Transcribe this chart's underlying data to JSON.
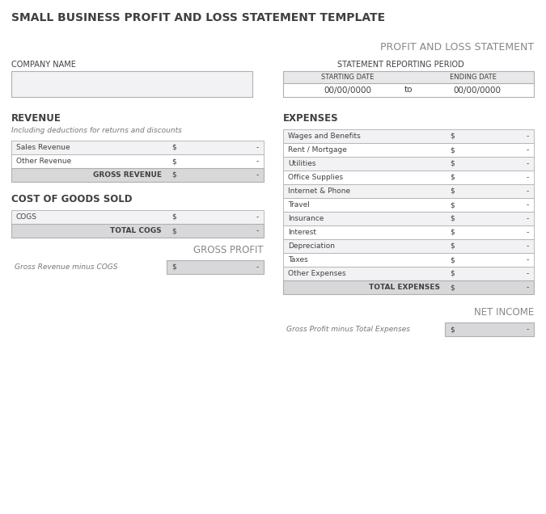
{
  "title": "SMALL BUSINESS PROFIT AND LOSS STATEMENT TEMPLATE",
  "subtitle": "PROFIT AND LOSS STATEMENT",
  "bg_color": "#ffffff",
  "title_color": "#404040",
  "header_color": "#404040",
  "gray_bg": "#e8e8ea",
  "light_gray_bg": "#f2f2f4",
  "total_row_bg": "#d8d8db",
  "border_color": "#b0b0b0",
  "text_color": "#404040",
  "light_text": "#888888",
  "company_name_label": "COMPANY NAME",
  "statement_period_label": "STATEMENT REPORTING PERIOD",
  "starting_date_label": "STARTING DATE",
  "ending_date_label": "ENDING DATE",
  "start_date_val": "00/00/0000",
  "end_date_val": "00/00/0000",
  "to_text": "to",
  "revenue_label": "REVENUE",
  "revenue_subtitle": "Including deductions for returns and discounts",
  "revenue_rows": [
    "Sales Revenue",
    "Other Revenue"
  ],
  "revenue_total_label": "GROSS REVENUE",
  "cogs_label": "COST OF GOODS SOLD",
  "cogs_rows": [
    "COGS"
  ],
  "cogs_total_label": "TOTAL COGS",
  "gross_profit_label": "GROSS PROFIT",
  "gross_profit_sub": "Gross Revenue minus COGS",
  "expenses_label": "EXPENSES",
  "expense_rows": [
    "Wages and Benefits",
    "Rent / Mortgage",
    "Utilities",
    "Office Supplies",
    "Internet & Phone",
    "Travel",
    "Insurance",
    "Interest",
    "Depreciation",
    "Taxes",
    "Other Expenses"
  ],
  "expenses_total_label": "TOTAL EXPENSES",
  "net_income_label": "NET INCOME",
  "net_income_sub": "Gross Profit minus Total Expenses",
  "dollar_sign": "$",
  "dash_val": "-",
  "figw": 6.75,
  "figh": 6.36,
  "dpi": 100
}
